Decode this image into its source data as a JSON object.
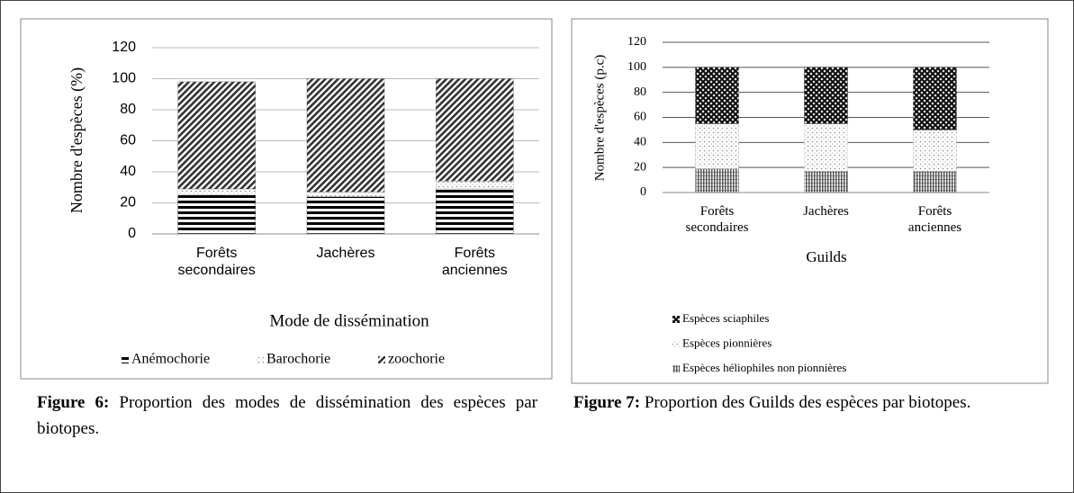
{
  "chart_data": [
    {
      "type": "bar",
      "stacked": true,
      "grid": true,
      "xlabel": "Mode de dissémination",
      "ylabel": "Nombre d'espèces (%)",
      "categories": [
        "Forêts secondaires",
        "Jachères",
        "Forêts anciennes"
      ],
      "series": [
        {
          "name": "Anémochorie",
          "color": "#000000",
          "pattern": "hlines",
          "values": [
            25,
            24,
            29
          ]
        },
        {
          "name": "Barochorie",
          "color": "#999999",
          "pattern": "dots",
          "values": [
            4,
            3,
            5
          ]
        },
        {
          "name": "zoochorie",
          "color": "#333333",
          "pattern": "diagonal",
          "values": [
            69,
            73,
            66
          ]
        }
      ],
      "ylim": [
        0,
        120
      ],
      "yticks": [
        0,
        20,
        40,
        60,
        80,
        100,
        120
      ],
      "legend": "bottom"
    },
    {
      "type": "bar",
      "stacked": true,
      "grid": true,
      "xlabel": "Guilds",
      "ylabel": "Nombre d'espèces (p.c)",
      "categories": [
        "Forêts secondaires",
        "Jachères",
        "Forêts anciennes"
      ],
      "series": [
        {
          "name": "Espèces héliophiles non pionnières",
          "color": "#666666",
          "pattern": "vlines",
          "values": [
            19,
            17,
            17
          ]
        },
        {
          "name": "Espèces pionnières",
          "color": "#aaaaaa",
          "pattern": "dots",
          "values": [
            36,
            38,
            33
          ]
        },
        {
          "name": "Espèces sciaphiles",
          "color": "#222222",
          "pattern": "cross",
          "values": [
            45,
            45,
            50
          ]
        }
      ],
      "ylim": [
        0,
        120
      ],
      "yticks": [
        0,
        20,
        40,
        60,
        80,
        100,
        120
      ],
      "legend": "bottom-left"
    }
  ],
  "captions": [
    {
      "label": "Figure 6:",
      "text": "Proportion des modes de dissémination des espèces par biotopes."
    },
    {
      "label": "Figure 7:",
      "text": "Proportion des Guilds des espèces par biotopes."
    }
  ]
}
